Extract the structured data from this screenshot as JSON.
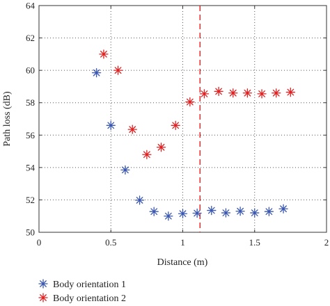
{
  "chart_data": {
    "type": "scatter",
    "xlabel": "Distance (m)",
    "ylabel": "Path loss (dB)",
    "xlim": [
      0,
      2
    ],
    "ylim": [
      50,
      64
    ],
    "xticks": [
      0,
      0.5,
      1,
      1.5,
      2
    ],
    "xtick_labels": [
      "0",
      "0.5",
      "1",
      "1.5",
      "2"
    ],
    "yticks": [
      50,
      52,
      54,
      56,
      58,
      60,
      62,
      64
    ],
    "ytick_labels": [
      "50",
      "52",
      "54",
      "56",
      "58",
      "60",
      "62",
      "64"
    ],
    "grid": true,
    "legend_position": "bottom-left, below plot",
    "marker": "asterisk",
    "vline": {
      "x": 1.12,
      "style": "dashed",
      "color": "#e02020"
    },
    "series": [
      {
        "name": "Body orientation 1",
        "color": "#3a57b0",
        "x": [
          0.4,
          0.5,
          0.6,
          0.7,
          0.8,
          0.9,
          1.0,
          1.1,
          1.2,
          1.3,
          1.4,
          1.5,
          1.6,
          1.7
        ],
        "y": [
          59.85,
          56.6,
          53.85,
          51.98,
          51.28,
          51.0,
          51.15,
          51.18,
          51.35,
          51.2,
          51.3,
          51.2,
          51.28,
          51.45
        ]
      },
      {
        "name": "Body orientation 2",
        "color": "#e02020",
        "x": [
          0.45,
          0.55,
          0.65,
          0.75,
          0.85,
          0.95,
          1.05,
          1.15,
          1.25,
          1.35,
          1.45,
          1.55,
          1.65,
          1.75
        ],
        "y": [
          61.0,
          60.0,
          56.35,
          54.8,
          55.25,
          56.6,
          58.05,
          58.55,
          58.7,
          58.6,
          58.6,
          58.55,
          58.6,
          58.65
        ]
      }
    ]
  }
}
